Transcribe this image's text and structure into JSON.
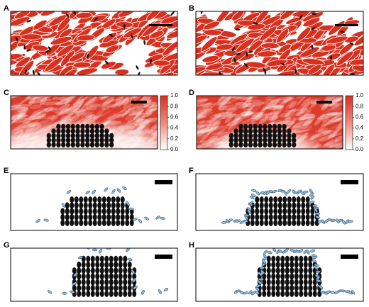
{
  "panels": [
    {
      "label": "A"
    },
    {
      "label": "B"
    },
    {
      "label": "C"
    },
    {
      "label": "D"
    },
    {
      "label": "E"
    },
    {
      "label": "F"
    },
    {
      "label": "G"
    },
    {
      "label": "H"
    }
  ],
  "colorbars": [
    {
      "ticks": [
        "1.0",
        "0.8",
        "0.6",
        "0.4",
        "0.2",
        "0.0"
      ]
    },
    {
      "ticks": [
        "1.0",
        "0.8",
        "0.6",
        "0.4",
        "0.2",
        "0.0"
      ]
    }
  ]
}
